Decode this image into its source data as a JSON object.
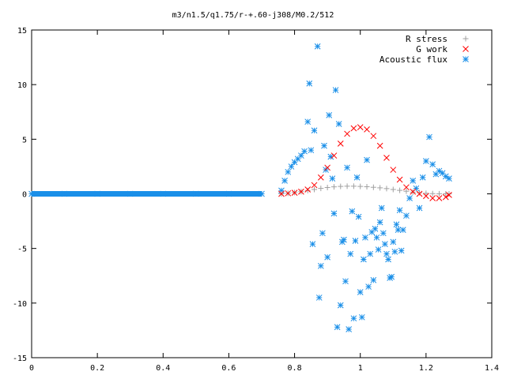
{
  "chart_data": {
    "type": "scatter",
    "title": "m3/n1.5/q1.75/r-+.60-j308/M0.2/512",
    "xlabel": "",
    "ylabel": "",
    "xlim": [
      0,
      1.4
    ],
    "ylim": [
      -15,
      15
    ],
    "x_ticks": [
      "0",
      "0.2",
      "0.4",
      "0.6",
      "0.8",
      "1",
      "1.2",
      "1.4"
    ],
    "y_ticks": [
      "15",
      "10",
      "5",
      "0",
      "-5",
      "-10",
      "-15"
    ],
    "grid": false,
    "legend_position": "top-right",
    "series": [
      {
        "name": "R stress",
        "marker": "plus",
        "color": "#a0a0a0",
        "x": [
          0.76,
          0.78,
          0.8,
          0.82,
          0.84,
          0.86,
          0.88,
          0.9,
          0.92,
          0.94,
          0.96,
          0.98,
          1.0,
          1.02,
          1.04,
          1.06,
          1.08,
          1.1,
          1.12,
          1.14,
          1.16,
          1.18,
          1.2,
          1.22,
          1.24,
          1.26,
          1.27
        ],
        "y": [
          0.0,
          0.05,
          0.12,
          0.2,
          0.3,
          0.4,
          0.5,
          0.58,
          0.64,
          0.68,
          0.7,
          0.7,
          0.68,
          0.65,
          0.6,
          0.55,
          0.48,
          0.4,
          0.32,
          0.24,
          0.16,
          0.1,
          0.05,
          0.02,
          0.01,
          0.0,
          0.0
        ]
      },
      {
        "name": "G work",
        "marker": "cross",
        "color": "#ff0000",
        "x": [
          0.76,
          0.78,
          0.8,
          0.82,
          0.84,
          0.86,
          0.88,
          0.9,
          0.92,
          0.94,
          0.96,
          0.98,
          1.0,
          1.02,
          1.04,
          1.06,
          1.08,
          1.1,
          1.12,
          1.14,
          1.16,
          1.18,
          1.2,
          1.22,
          1.24,
          1.26,
          1.27
        ],
        "y": [
          0.0,
          0.05,
          0.1,
          0.2,
          0.4,
          0.8,
          1.5,
          2.4,
          3.5,
          4.6,
          5.5,
          6.0,
          6.1,
          5.9,
          5.3,
          4.4,
          3.3,
          2.2,
          1.3,
          0.6,
          0.2,
          0.0,
          -0.2,
          -0.4,
          -0.4,
          -0.3,
          -0.1
        ]
      },
      {
        "name": "Acoustic flux",
        "marker": "star",
        "color": "#1a8fe8",
        "x": [
          0.0,
          0.1,
          0.2,
          0.3,
          0.4,
          0.5,
          0.6,
          0.7,
          0.76,
          0.77,
          0.78,
          0.79,
          0.8,
          0.81,
          0.82,
          0.83,
          0.84,
          0.845,
          0.85,
          0.855,
          0.86,
          0.87,
          0.875,
          0.88,
          0.885,
          0.89,
          0.895,
          0.9,
          0.905,
          0.91,
          0.915,
          0.92,
          0.925,
          0.93,
          0.935,
          0.94,
          0.945,
          0.95,
          0.955,
          0.96,
          0.965,
          0.97,
          0.975,
          0.98,
          0.985,
          0.99,
          0.995,
          1.0,
          1.005,
          1.01,
          1.015,
          1.02,
          1.025,
          1.03,
          1.035,
          1.04,
          1.045,
          1.05,
          1.055,
          1.06,
          1.065,
          1.07,
          1.075,
          1.08,
          1.085,
          1.09,
          1.095,
          1.1,
          1.105,
          1.11,
          1.115,
          1.12,
          1.125,
          1.13,
          1.14,
          1.15,
          1.16,
          1.17,
          1.18,
          1.19,
          1.2,
          1.21,
          1.22,
          1.23,
          1.24,
          1.25,
          1.26,
          1.27
        ],
        "y": [
          0,
          0,
          0,
          0,
          0,
          0,
          0,
          0,
          0.3,
          1.2,
          2.0,
          2.5,
          2.9,
          3.2,
          3.5,
          3.9,
          6.6,
          10.1,
          4.0,
          -4.6,
          5.8,
          13.5,
          -9.5,
          -6.6,
          -3.6,
          4.4,
          2.2,
          -5.8,
          7.2,
          3.4,
          1.4,
          -1.8,
          9.5,
          -12.2,
          6.4,
          -10.2,
          -4.4,
          -4.2,
          -8.0,
          2.4,
          -12.4,
          -5.5,
          -1.6,
          -11.4,
          -4.3,
          1.5,
          -2.1,
          -9.0,
          -11.3,
          -6.0,
          -4.0,
          3.1,
          -8.5,
          -5.5,
          -3.5,
          -7.9,
          -3.2,
          -4.0,
          -5.1,
          -2.6,
          -1.3,
          -3.6,
          -4.6,
          -5.5,
          -6.0,
          -7.7,
          -7.6,
          -4.4,
          -5.3,
          -2.8,
          -3.3,
          -1.5,
          -5.2,
          -3.3,
          -2.0,
          -0.4,
          1.2,
          0.5,
          -1.3,
          1.5,
          3.0,
          5.2,
          2.7,
          1.8,
          2.1,
          1.9,
          1.6,
          1.4
        ]
      }
    ]
  }
}
